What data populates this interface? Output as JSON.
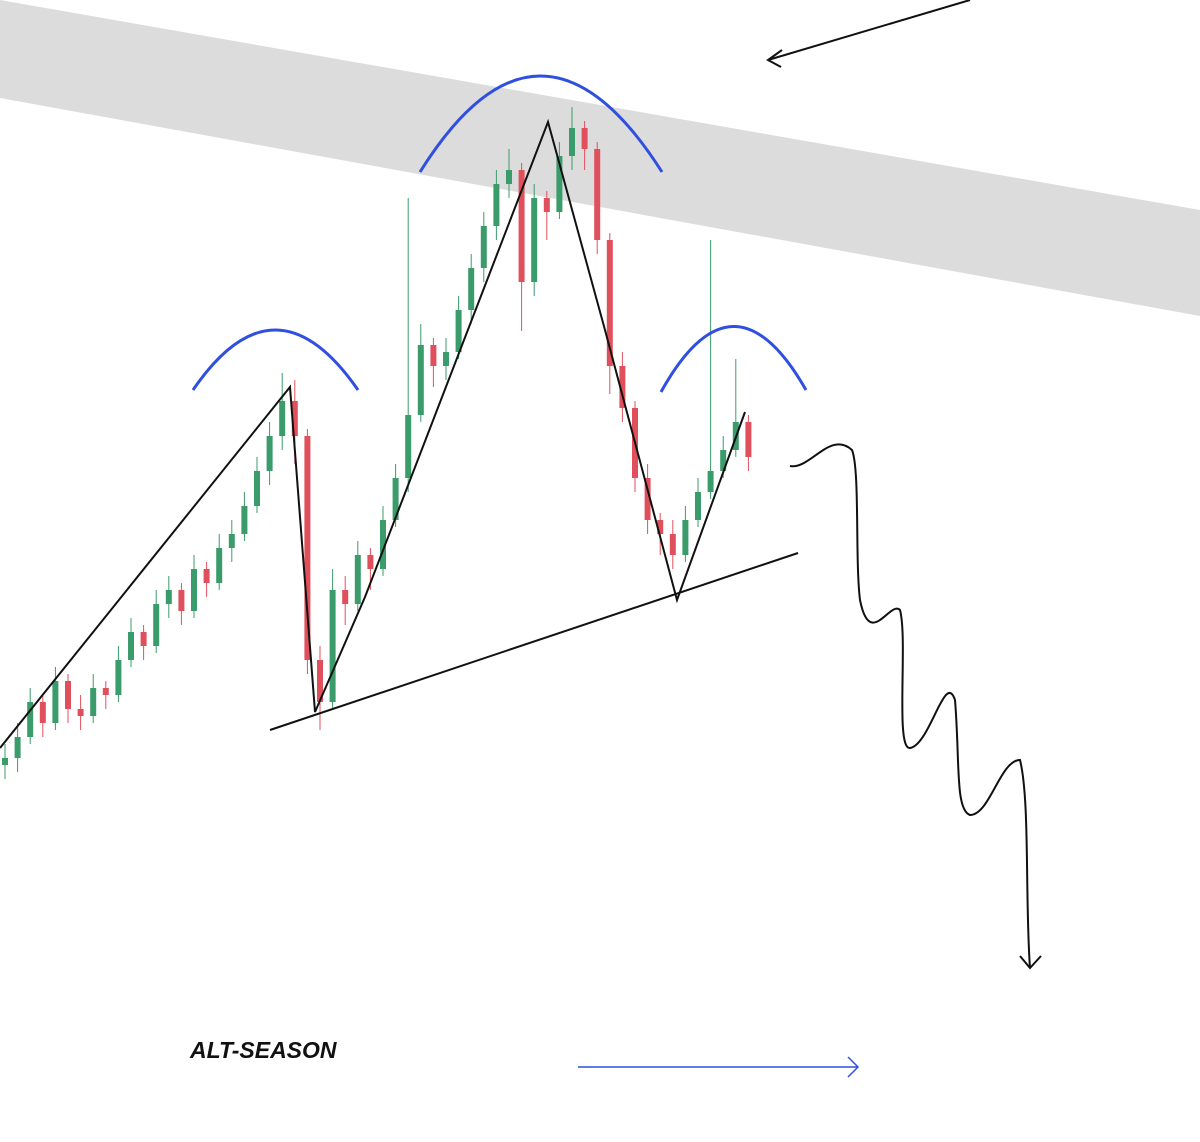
{
  "chart_data": {
    "type": "candlestick",
    "annotation": "ALT-SEASON",
    "up_color": "#3a9b6b",
    "down_color": "#e0505c",
    "ylim": [
      0,
      100
    ],
    "ohlc": [
      [
        5,
        8,
        3,
        6
      ],
      [
        6,
        11,
        4,
        9
      ],
      [
        9,
        16,
        8,
        14
      ],
      [
        14,
        15,
        9,
        11
      ],
      [
        11,
        19,
        10,
        17
      ],
      [
        17,
        18,
        11,
        13
      ],
      [
        13,
        15,
        10,
        12
      ],
      [
        12,
        18,
        11,
        16
      ],
      [
        16,
        17,
        13,
        15
      ],
      [
        15,
        22,
        14,
        20
      ],
      [
        20,
        26,
        19,
        24
      ],
      [
        24,
        25,
        20,
        22
      ],
      [
        22,
        30,
        21,
        28
      ],
      [
        28,
        32,
        26,
        30
      ],
      [
        30,
        31,
        25,
        27
      ],
      [
        27,
        35,
        26,
        33
      ],
      [
        33,
        34,
        29,
        31
      ],
      [
        31,
        38,
        30,
        36
      ],
      [
        36,
        40,
        34,
        38
      ],
      [
        38,
        44,
        37,
        42
      ],
      [
        42,
        49,
        41,
        47
      ],
      [
        47,
        54,
        45,
        52
      ],
      [
        52,
        61,
        50,
        57
      ],
      [
        57,
        60,
        48,
        52
      ],
      [
        52,
        53,
        18,
        20
      ],
      [
        20,
        22,
        10,
        14
      ],
      [
        14,
        33,
        13,
        30
      ],
      [
        30,
        32,
        25,
        28
      ],
      [
        28,
        37,
        27,
        35
      ],
      [
        35,
        36,
        30,
        33
      ],
      [
        33,
        42,
        32,
        40
      ],
      [
        40,
        48,
        39,
        46
      ],
      [
        46,
        86,
        44,
        55
      ],
      [
        55,
        68,
        54,
        65
      ],
      [
        65,
        66,
        59,
        62
      ],
      [
        62,
        66,
        60,
        64
      ],
      [
        64,
        72,
        63,
        70
      ],
      [
        70,
        78,
        68,
        76
      ],
      [
        76,
        84,
        74,
        82
      ],
      [
        82,
        90,
        80,
        88
      ],
      [
        88,
        93,
        86,
        90
      ],
      [
        90,
        91,
        67,
        74
      ],
      [
        74,
        88,
        72,
        86
      ],
      [
        86,
        87,
        80,
        84
      ],
      [
        84,
        94,
        83,
        92
      ],
      [
        92,
        99,
        90,
        96
      ],
      [
        96,
        97,
        90,
        93
      ],
      [
        93,
        94,
        78,
        80
      ],
      [
        80,
        81,
        58,
        62
      ],
      [
        62,
        64,
        54,
        56
      ],
      [
        56,
        57,
        44,
        46
      ],
      [
        46,
        48,
        38,
        40
      ],
      [
        40,
        41,
        35,
        38
      ],
      [
        38,
        40,
        33,
        35
      ],
      [
        35,
        42,
        34,
        40
      ],
      [
        40,
        46,
        39,
        44
      ],
      [
        44,
        80,
        43,
        47
      ],
      [
        47,
        52,
        46,
        50
      ],
      [
        50,
        63,
        49,
        54
      ],
      [
        54,
        55,
        47,
        49
      ]
    ]
  }
}
